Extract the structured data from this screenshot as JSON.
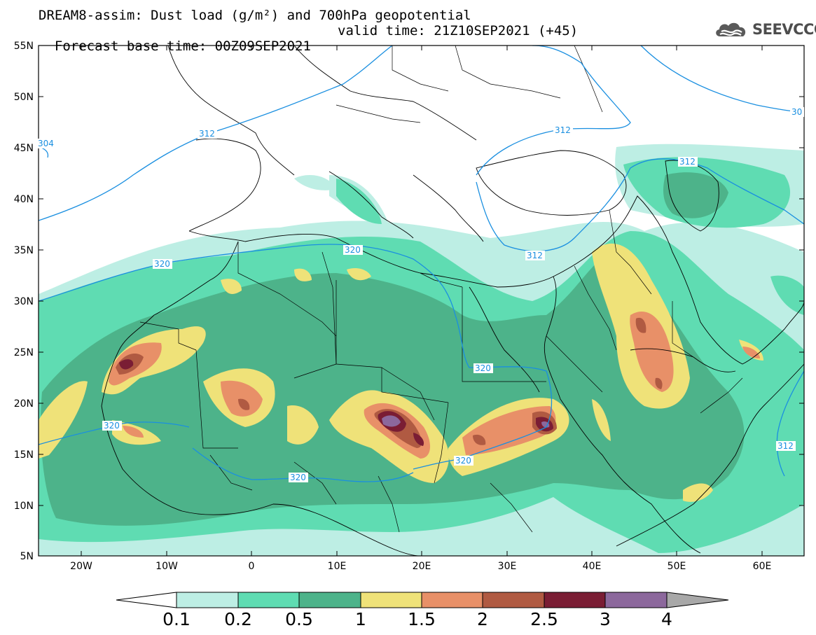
{
  "header": {
    "title_line1": "DREAM8-assim: Dust load (g/m²) and 700hPa geopotential",
    "title_line2_base": "Forecast base time: 00Z09SEP2021",
    "title_line2_valid": "valid time: 21Z10SEP2021 (+45)"
  },
  "logo": {
    "text": "SEEVCCC",
    "icon": "cloud-icon"
  },
  "map": {
    "lat_labels": [
      "55N",
      "50N",
      "45N",
      "40N",
      "35N",
      "30N",
      "25N",
      "20N",
      "15N",
      "10N",
      "5N"
    ],
    "lon_labels": [
      "20W",
      "10W",
      "0",
      "10E",
      "20E",
      "30E",
      "40E",
      "50E",
      "60E"
    ],
    "contour_labels": [
      "304",
      "312",
      "312",
      "312",
      "312",
      "312",
      "320",
      "320",
      "320",
      "320",
      "320",
      "320",
      "30"
    ],
    "colors": {
      "c01": "#bdeee4",
      "c02": "#5fdcb2",
      "c05": "#4db38a",
      "c1": "#efe279",
      "c15": "#e89068",
      "c2": "#b05a42",
      "c25": "#7a1d34",
      "c3": "#8c689c",
      "c4": "#a8a8a8",
      "contour": "#1a8fe0",
      "coast": "#000000"
    }
  },
  "colorbar": {
    "labels": [
      "0.1",
      "0.2",
      "0.5",
      "1",
      "1.5",
      "2",
      "2.5",
      "3",
      "4"
    ]
  }
}
